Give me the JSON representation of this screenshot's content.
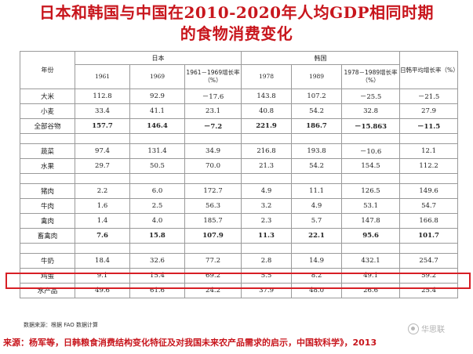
{
  "title": {
    "line1": "日本和韩国与中国在2010-2020年人均GDP相同时期",
    "line2": "的食物消费变化"
  },
  "table": {
    "col_year": "年份",
    "group_japan": "日本",
    "group_korea": "韩国",
    "col_avg": "日韩平均增长率（%）",
    "sub_headers": [
      "1961",
      "1969",
      "1961－1969增长率（%）",
      "1978",
      "1989",
      "1978－1989增长率（%）"
    ],
    "rows": [
      {
        "label": "大米",
        "values": [
          "112.8",
          "92.9",
          "－17.6",
          "143.8",
          "107.2",
          "－25.5",
          "－21.5"
        ],
        "bold": false
      },
      {
        "label": "小麦",
        "values": [
          "33.4",
          "41.1",
          "23.1",
          "40.8",
          "54.2",
          "32.8",
          "27.9"
        ],
        "bold": false
      },
      {
        "label": "全部谷物",
        "values": [
          "157.7",
          "146.4",
          "－7.2",
          "221.9",
          "186.7",
          "－15.863",
          "－11.5"
        ],
        "bold": true
      },
      {
        "spacer": true
      },
      {
        "label": "蔬菜",
        "values": [
          "97.4",
          "131.4",
          "34.9",
          "216.8",
          "193.8",
          "－10.6",
          "12.1"
        ],
        "bold": false
      },
      {
        "label": "水果",
        "values": [
          "29.7",
          "50.5",
          "70.0",
          "21.3",
          "54.2",
          "154.5",
          "112.2"
        ],
        "bold": false
      },
      {
        "spacer": true
      },
      {
        "label": "猪肉",
        "values": [
          "2.2",
          "6.0",
          "172.7",
          "4.9",
          "11.1",
          "126.5",
          "149.6"
        ],
        "bold": false
      },
      {
        "label": "牛肉",
        "values": [
          "1.6",
          "2.5",
          "56.3",
          "3.2",
          "4.9",
          "53.1",
          "54.7"
        ],
        "bold": false
      },
      {
        "label": "禽肉",
        "values": [
          "1.4",
          "4.0",
          "185.7",
          "2.3",
          "5.7",
          "147.8",
          "166.8"
        ],
        "bold": false
      },
      {
        "label": "畜禽肉",
        "values": [
          "7.6",
          "15.8",
          "107.9",
          "11.3",
          "22.1",
          "95.6",
          "101.7"
        ],
        "bold": true
      },
      {
        "spacer": true
      },
      {
        "label": "牛奶",
        "values": [
          "18.4",
          "32.6",
          "77.2",
          "2.8",
          "14.9",
          "432.1",
          "254.7"
        ],
        "bold": false
      },
      {
        "label": "鸡蛋",
        "values": [
          "9.1",
          "15.4",
          "69.2",
          "5.5",
          "8.2",
          "49.1",
          "59.2"
        ],
        "bold": false
      },
      {
        "label": "水产品",
        "values": [
          "49.6",
          "61.6",
          "24.2",
          "37.9",
          "48.0",
          "26.6",
          "25.4"
        ],
        "bold": false
      }
    ]
  },
  "data_source": "数据来源：根据 FAO 数据计算",
  "footer": "来源：杨军等，日韩粮食消费结构变化特征及对我国未来农产品需求的启示，中国软科学》，2013",
  "watermark": "华思联",
  "colors": {
    "accent": "#c8161d",
    "highlight": "#d71f25"
  }
}
